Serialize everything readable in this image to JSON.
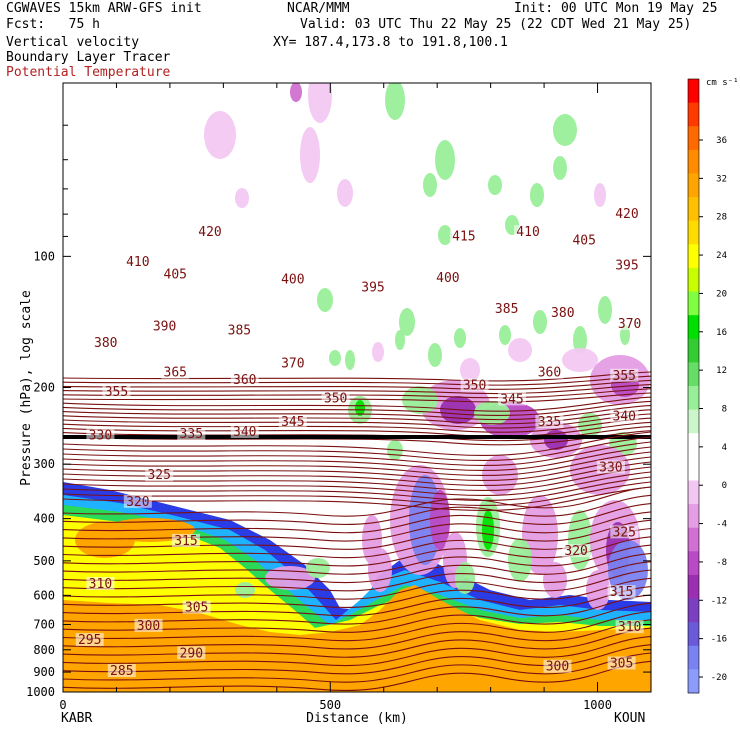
{
  "header": {
    "model": "CGWAVES 15km ARW-GFS init",
    "org": "NCAR/MMM",
    "init": "Init: 00 UTC Mon 19 May 25",
    "fcst": "Fcst:   75 h",
    "valid": "Valid: 03 UTC Thu 22 May 25 (22 CDT Wed 21 May 25)",
    "field1": "Vertical velocity",
    "xy": "XY= 187.4,173.8 to 191.8,100.1",
    "field2": "Boundary Layer Tracer",
    "field3": "Potential Temperature",
    "field3_color": "#b22222"
  },
  "chart_data": {
    "type": "heatmap",
    "xlabel": "Distance (km)",
    "ylabel": "Pressure (hPa), log scale",
    "xlim": [
      0,
      1100
    ],
    "ylim": [
      1000,
      40
    ],
    "y_scale": "log",
    "x_ticks": [
      0,
      500,
      1000
    ],
    "y_ticks": [
      100,
      200,
      300,
      400,
      500,
      600,
      700,
      800,
      900,
      1000
    ],
    "left_station": "KABR",
    "right_station": "KOUN",
    "colorbar": {
      "unit": "cm s⁻¹",
      "tick_labels": [
        "36",
        "32",
        "28",
        "24",
        "20",
        "16",
        "12",
        "8",
        "4",
        "0",
        "-4",
        "-8",
        "-12",
        "-16",
        "-20"
      ],
      "colors": [
        "#ff0000",
        "#ff3a00",
        "#ff6a00",
        "#ff8c00",
        "#ffa500",
        "#ffc000",
        "#ffdc00",
        "#ffff00",
        "#c8ff00",
        "#7fff3f",
        "#00e000",
        "#33cc33",
        "#66dd66",
        "#99ee99",
        "#ccf5cc",
        "#ffffff",
        "#ffffff",
        "#f2c8f2",
        "#e49ee4",
        "#d070d0",
        "#b84bc4",
        "#9a30b0",
        "#7a40c0",
        "#6a5ad8",
        "#7a82f0",
        "#8c9cfa"
      ]
    },
    "theta_labels": [
      {
        "v": "420",
        "x": 275,
        "p": 88
      },
      {
        "v": "410",
        "x": 140,
        "p": 103
      },
      {
        "v": "405",
        "x": 210,
        "p": 110
      },
      {
        "v": "400",
        "x": 430,
        "p": 113
      },
      {
        "v": "395",
        "x": 580,
        "p": 118
      },
      {
        "v": "390",
        "x": 190,
        "p": 145
      },
      {
        "v": "385",
        "x": 330,
        "p": 148
      },
      {
        "v": "380",
        "x": 80,
        "p": 158
      },
      {
        "v": "370",
        "x": 430,
        "p": 176
      },
      {
        "v": "365",
        "x": 210,
        "p": 185
      },
      {
        "v": "360",
        "x": 340,
        "p": 192
      },
      {
        "v": "355",
        "x": 100,
        "p": 205
      },
      {
        "v": "350",
        "x": 510,
        "p": 212
      },
      {
        "v": "345",
        "x": 430,
        "p": 240
      },
      {
        "v": "340",
        "x": 340,
        "p": 253
      },
      {
        "v": "335",
        "x": 240,
        "p": 256
      },
      {
        "v": "330",
        "x": 70,
        "p": 258
      },
      {
        "v": "325",
        "x": 180,
        "p": 318
      },
      {
        "v": "320",
        "x": 140,
        "p": 366
      },
      {
        "v": "315",
        "x": 230,
        "p": 450
      },
      {
        "v": "310",
        "x": 70,
        "p": 565
      },
      {
        "v": "305",
        "x": 250,
        "p": 640
      },
      {
        "v": "300",
        "x": 160,
        "p": 705
      },
      {
        "v": "295",
        "x": 50,
        "p": 760
      },
      {
        "v": "290",
        "x": 240,
        "p": 815
      },
      {
        "v": "285",
        "x": 110,
        "p": 895
      },
      {
        "v": "415",
        "x": 750,
        "p": 90
      },
      {
        "v": "410",
        "x": 870,
        "p": 88
      },
      {
        "v": "405",
        "x": 975,
        "p": 92
      },
      {
        "v": "420",
        "x": 1055,
        "p": 80
      },
      {
        "v": "395",
        "x": 1055,
        "p": 105
      },
      {
        "v": "400",
        "x": 720,
        "p": 112
      },
      {
        "v": "385",
        "x": 830,
        "p": 132
      },
      {
        "v": "380",
        "x": 935,
        "p": 135
      },
      {
        "v": "370",
        "x": 1060,
        "p": 143
      },
      {
        "v": "360",
        "x": 910,
        "p": 185
      },
      {
        "v": "355",
        "x": 1050,
        "p": 188
      },
      {
        "v": "350",
        "x": 770,
        "p": 198
      },
      {
        "v": "345",
        "x": 840,
        "p": 213
      },
      {
        "v": "340",
        "x": 1050,
        "p": 233
      },
      {
        "v": "335",
        "x": 910,
        "p": 240
      },
      {
        "v": "330",
        "x": 1025,
        "p": 305
      },
      {
        "v": "325",
        "x": 1050,
        "p": 430
      },
      {
        "v": "320",
        "x": 960,
        "p": 475
      },
      {
        "v": "315",
        "x": 1045,
        "p": 590
      },
      {
        "v": "310",
        "x": 1060,
        "p": 710
      },
      {
        "v": "305",
        "x": 1045,
        "p": 860
      },
      {
        "v": "300",
        "x": 925,
        "p": 875
      }
    ]
  }
}
